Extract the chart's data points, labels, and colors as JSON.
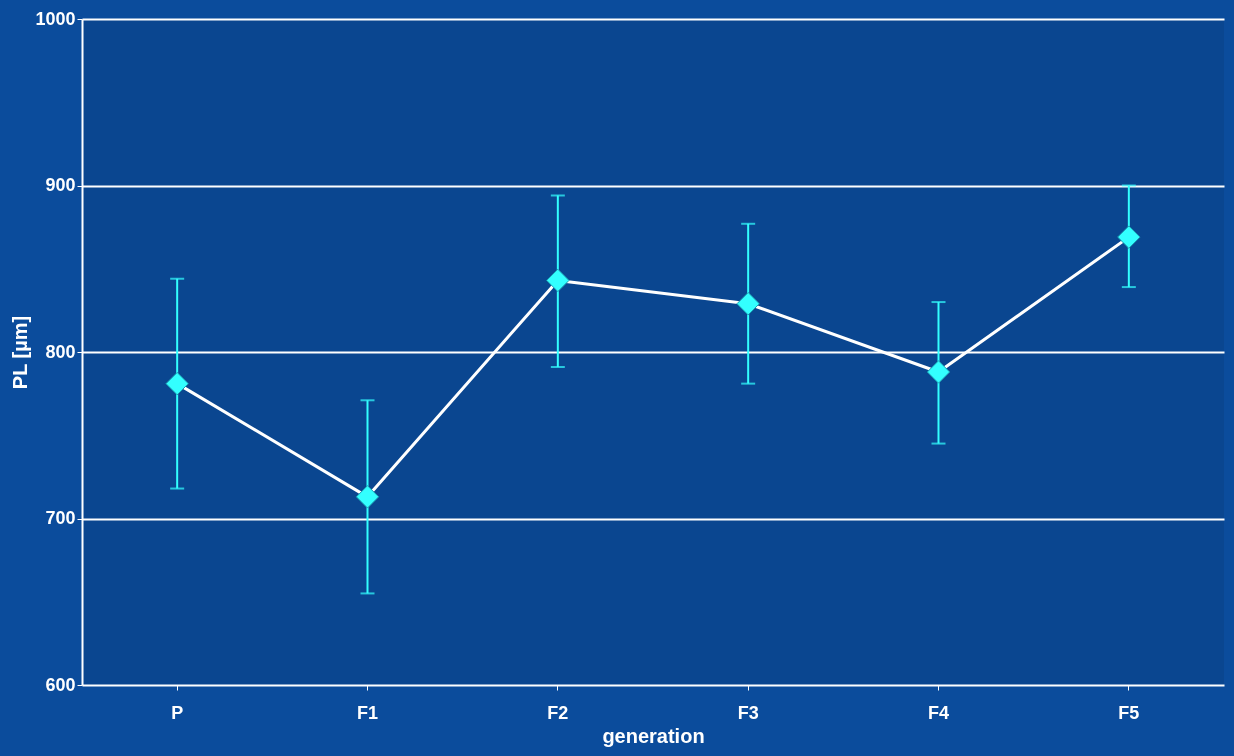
{
  "chart_data": {
    "type": "line",
    "xlabel": "generation",
    "ylabel": "PL [µm]",
    "categories": [
      "P",
      "F1",
      "F2",
      "F3",
      "F4",
      "F5"
    ],
    "series": [
      {
        "color": "#33ffff",
        "values": [
          781,
          713,
          843,
          829,
          788,
          869
        ],
        "errors": [
          [
            718,
            844
          ],
          [
            655,
            771
          ],
          [
            791,
            894
          ],
          [
            781,
            877
          ],
          [
            745,
            830
          ],
          [
            839,
            900
          ]
        ]
      }
    ],
    "ylim": [
      600,
      1000
    ],
    "yticks": [
      600,
      700,
      800,
      900,
      1000
    ],
    "grid": "y",
    "marker": "diamond",
    "line_style": "solid"
  }
}
